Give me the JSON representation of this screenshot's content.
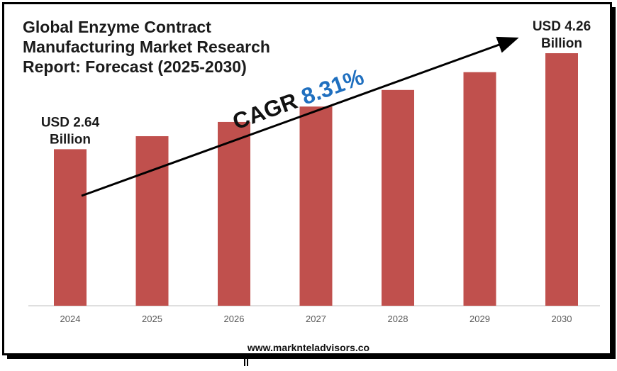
{
  "title_lines": [
    "Global Enzyme Contract",
    "Manufacturing Market Research",
    "Report: Forecast (2025-2030)"
  ],
  "cagr": {
    "label": "CAGR",
    "value": "8.31%"
  },
  "footer": {
    "website": "www.marknteladvisors.co"
  },
  "colors": {
    "bar": "#c0504d",
    "cagr_value": "#1f6fbf",
    "text": "#1b1b1b",
    "axis": "#bfbfbf"
  },
  "chart_data": {
    "type": "bar",
    "categories": [
      "2024",
      "2025",
      "2026",
      "2027",
      "2028",
      "2029",
      "2030"
    ],
    "values": [
      2.64,
      2.86,
      3.1,
      3.36,
      3.64,
      3.94,
      4.26
    ],
    "title": "Global Enzyme Contract Manufacturing Market Research Report: Forecast (2025-2030)",
    "annotations": [
      {
        "category": "2024",
        "lines": [
          "USD 2.64",
          "Billion"
        ]
      },
      {
        "category": "2030",
        "lines": [
          "USD 4.26",
          "Billion"
        ]
      }
    ],
    "grid": false,
    "legend": "none"
  }
}
